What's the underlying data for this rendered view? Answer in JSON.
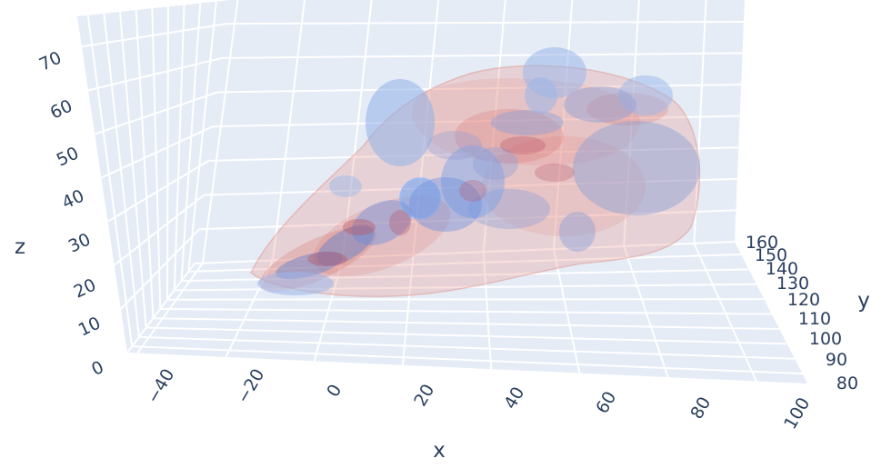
{
  "chart_data": {
    "type": "3d-volume",
    "title": "",
    "xlabel": "x",
    "ylabel": "y",
    "zlabel": "z",
    "x_ticks": [
      "−40",
      "−20",
      "0",
      "20",
      "40",
      "60",
      "80",
      "100"
    ],
    "y_ticks": [
      "80",
      "90",
      "100",
      "110",
      "120",
      "130",
      "140",
      "150",
      "160"
    ],
    "z_ticks": [
      "0",
      "10",
      "20",
      "30",
      "40",
      "50",
      "60",
      "70"
    ],
    "xlim": [
      -50,
      100
    ],
    "ylim": [
      80,
      160
    ],
    "zlim": [
      0,
      75
    ],
    "colors": {
      "background": "#e5ecf6",
      "grid": "#ffffff",
      "text": "#2a3f5f",
      "blue_blobs": "#7fa6e6",
      "red_blobs": "#e88f86"
    },
    "grid": true
  }
}
